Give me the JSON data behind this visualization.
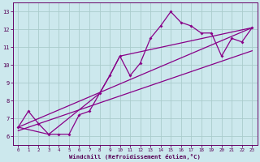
{
  "bg_color": "#cce8ed",
  "grid_color": "#aacccc",
  "line_color": "#880088",
  "xlabel": "Windchill (Refroidissement éolien,°C)",
  "xlim": [
    -0.5,
    23.5
  ],
  "ylim": [
    5.5,
    13.5
  ],
  "yticks": [
    6,
    7,
    8,
    9,
    10,
    11,
    12,
    13
  ],
  "xticks": [
    0,
    1,
    2,
    3,
    4,
    5,
    6,
    7,
    8,
    9,
    10,
    11,
    12,
    13,
    14,
    15,
    16,
    17,
    18,
    19,
    20,
    21,
    22,
    23
  ],
  "series1_x": [
    0,
    1,
    2,
    3,
    4,
    5,
    6,
    7,
    8,
    9,
    10,
    11,
    12,
    13,
    14,
    15,
    16,
    17,
    18,
    19,
    20,
    21,
    22,
    23
  ],
  "series1_y": [
    6.5,
    7.4,
    6.7,
    6.1,
    6.1,
    6.1,
    7.2,
    7.4,
    8.4,
    9.4,
    10.5,
    9.4,
    10.1,
    11.5,
    12.2,
    13.0,
    12.4,
    12.2,
    11.8,
    11.8,
    10.5,
    11.5,
    11.3,
    12.1
  ],
  "line2_x": [
    0,
    3,
    8,
    9,
    10,
    23
  ],
  "line2_y": [
    6.5,
    6.1,
    8.4,
    9.4,
    10.5,
    12.1
  ],
  "line3_x": [
    0,
    23
  ],
  "line3_y": [
    6.5,
    12.1
  ],
  "line4_x": [
    0,
    23
  ],
  "line4_y": [
    6.3,
    10.8
  ]
}
